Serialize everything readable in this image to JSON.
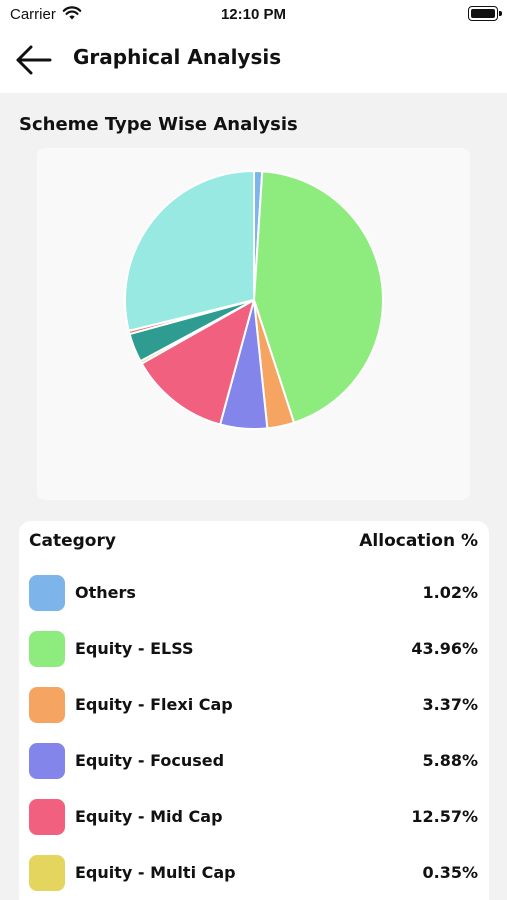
{
  "status_bar": {
    "carrier": "Carrier",
    "time": "12:10 PM"
  },
  "nav": {
    "title": "Graphical Analysis"
  },
  "section": {
    "title": "Scheme Type Wise Analysis"
  },
  "legend": {
    "category_header": "Category",
    "allocation_header": "Allocation %",
    "rows": [
      {
        "label": "Others",
        "value": "1.02%",
        "color": "#7db4ea"
      },
      {
        "label": "Equity - ELSS",
        "value": "43.96%",
        "color": "#8eec7e"
      },
      {
        "label": "Equity - Flexi Cap",
        "value": "3.37%",
        "color": "#f6a462"
      },
      {
        "label": "Equity - Focused",
        "value": "5.88%",
        "color": "#8385ea"
      },
      {
        "label": "Equity - Mid Cap",
        "value": "12.57%",
        "color": "#f1607f"
      },
      {
        "label": "Equity - Multi Cap",
        "value": "0.35%",
        "color": "#e3d55e"
      }
    ]
  },
  "chart_data": {
    "type": "pie",
    "slices": [
      {
        "label": "Others",
        "value": 1.02,
        "color": "#7db4ea"
      },
      {
        "label": "Equity - ELSS",
        "value": 43.96,
        "color": "#8eec7e"
      },
      {
        "label": "Equity - Flexi Cap",
        "value": 3.37,
        "color": "#f6a462"
      },
      {
        "label": "Equity - Focused",
        "value": 5.88,
        "color": "#8385ea"
      },
      {
        "label": "Equity - Mid Cap",
        "value": 12.57,
        "color": "#f1607f"
      },
      {
        "label": "Equity - Multi Cap",
        "value": 0.35,
        "color": "#e3d55e"
      },
      {
        "label": "",
        "value": 3.6,
        "color": "#2f9c92"
      },
      {
        "label": "",
        "value": 0.4,
        "color": "#e86a6a"
      },
      {
        "label": "",
        "value": 28.85,
        "color": "#97e9e1"
      }
    ]
  }
}
